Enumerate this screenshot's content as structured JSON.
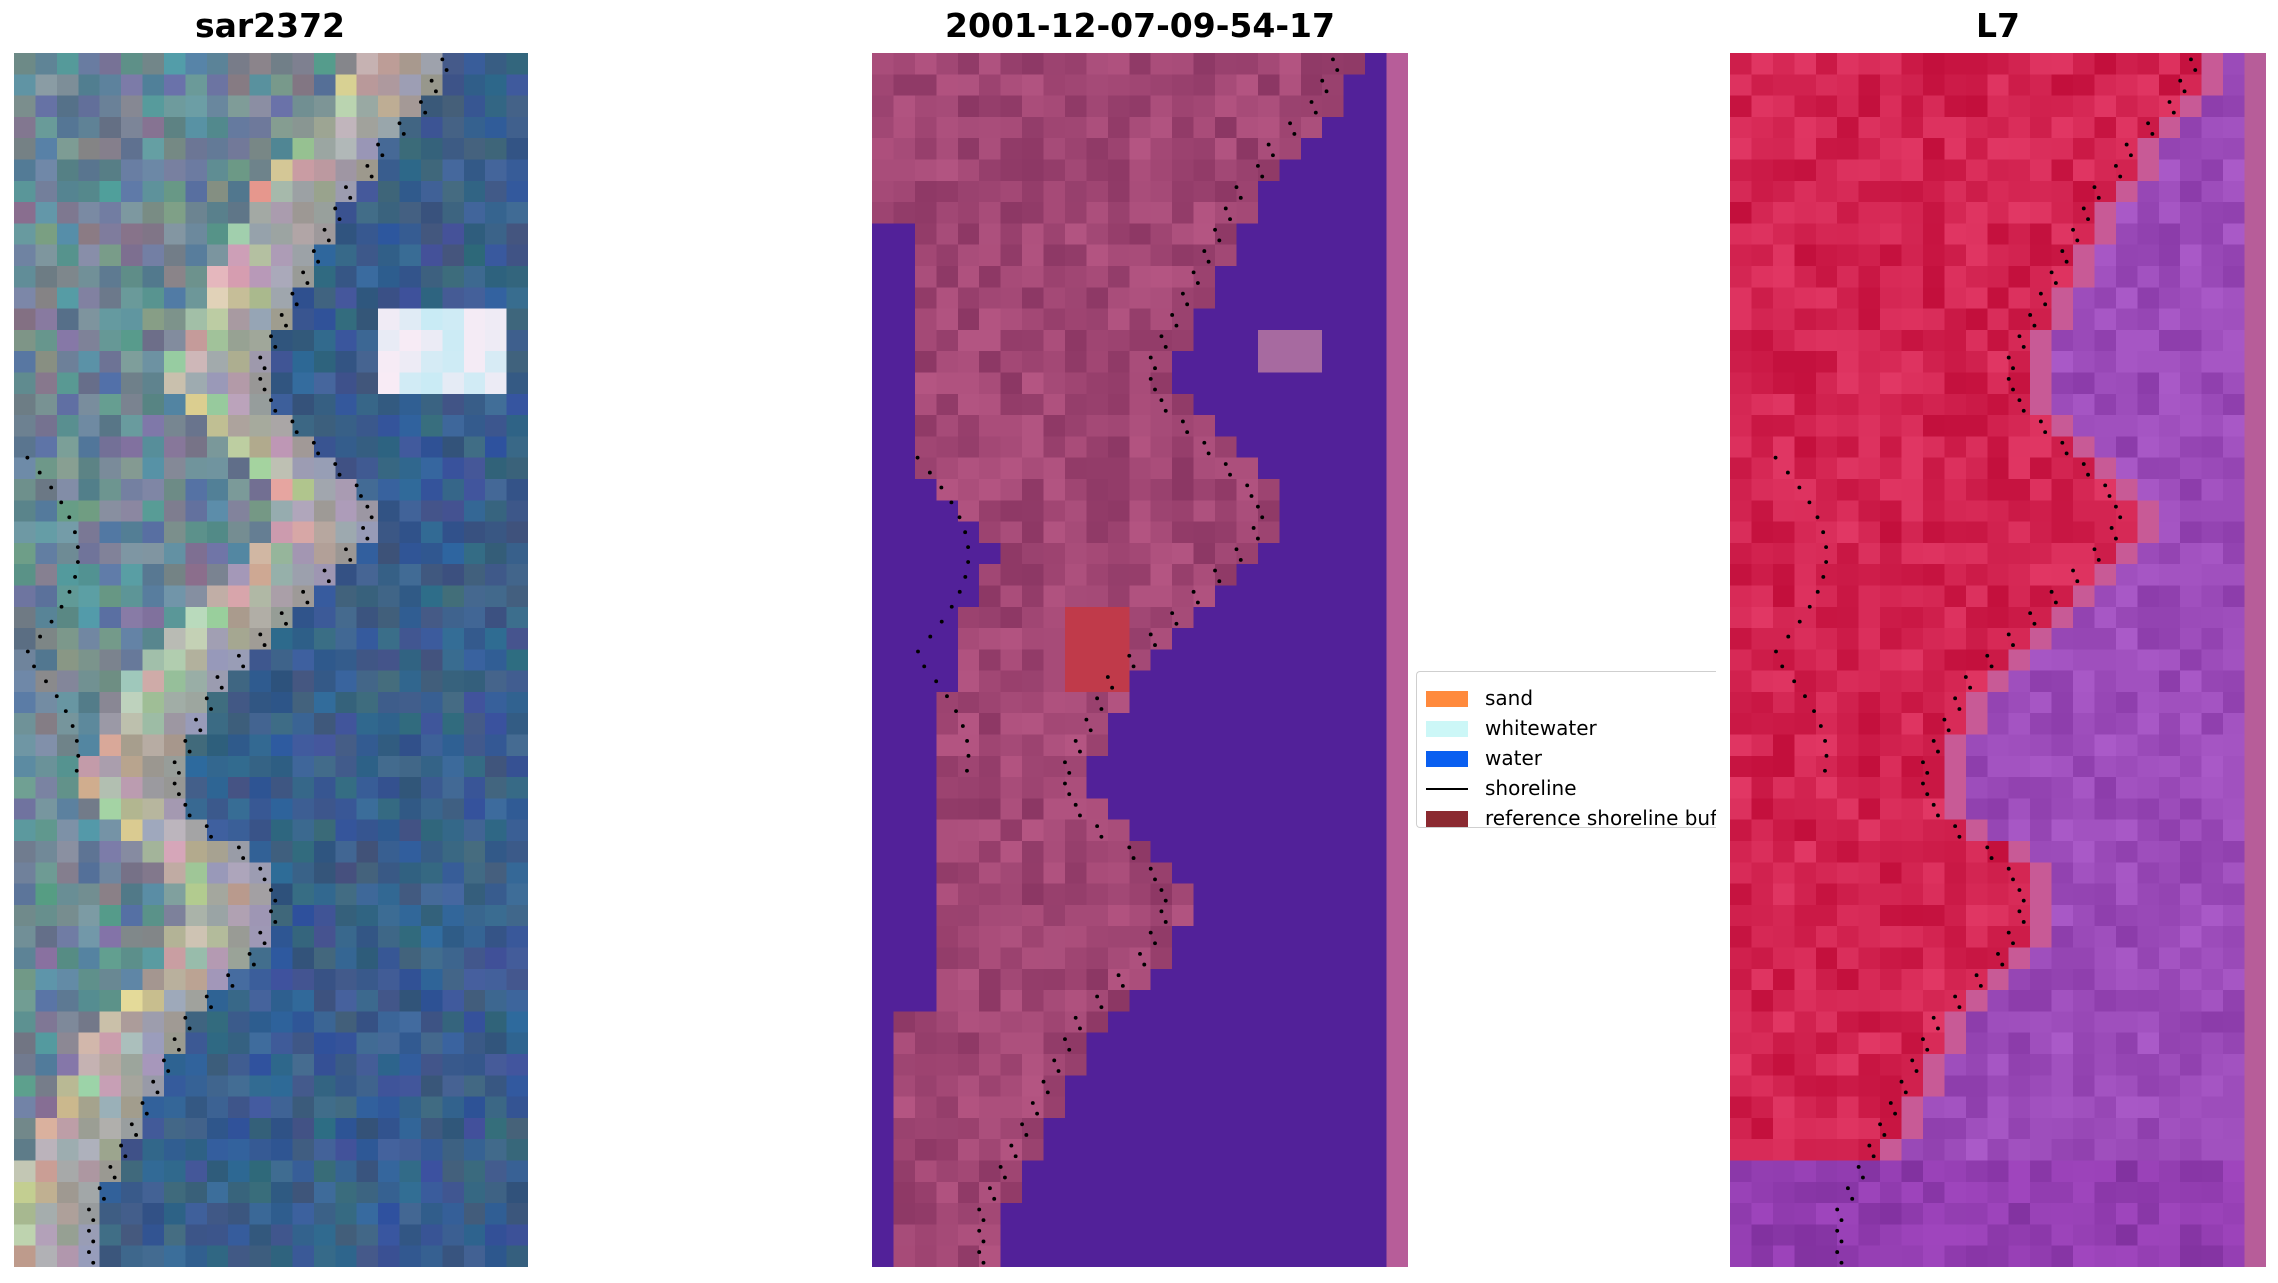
{
  "panels": [
    {
      "title": "sar2372",
      "kind": "rgb"
    },
    {
      "title": "2001-12-07-09-54-17",
      "kind": "classified"
    },
    {
      "title": "L7",
      "kind": "ndwi"
    }
  ],
  "legend": {
    "items": [
      {
        "label": "sand",
        "color": "#ff8a3d",
        "kind": "patch"
      },
      {
        "label": "whitewater",
        "color": "#ccf7f7",
        "kind": "patch"
      },
      {
        "label": "water",
        "color": "#0a5ff0",
        "kind": "patch"
      },
      {
        "label": "shoreline",
        "color": "#000000",
        "kind": "line"
      },
      {
        "label": "reference shoreline buffer",
        "color": "#8b2a31",
        "kind": "patch"
      }
    ]
  },
  "colors": {
    "water_purple": "#522199",
    "buffer_pink": "#b75d99",
    "sand_blend": "#a0336c",
    "ndwi_red": "#c7143f",
    "ndwi_purple": "#953fb2",
    "rgb_water": "#3a5d8a",
    "rgb_sand": "#c9c3b8"
  }
}
